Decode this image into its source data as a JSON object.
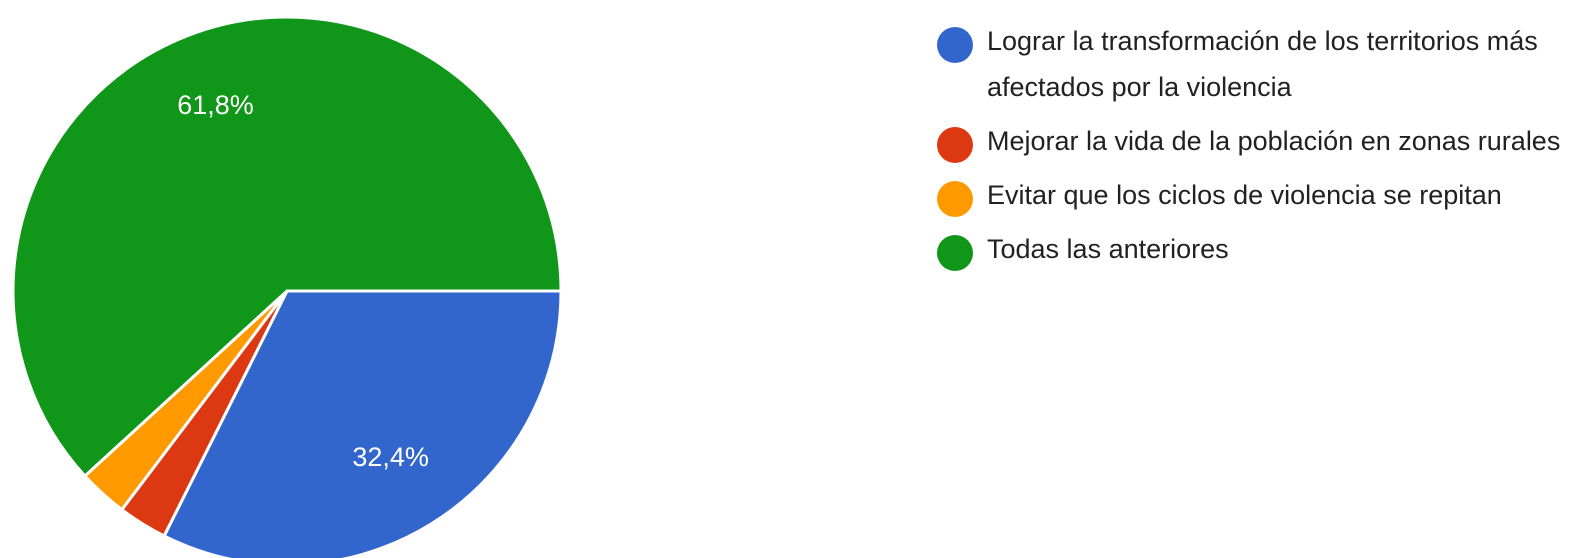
{
  "chart_data": {
    "type": "pie",
    "categories": [
      "Lograr la transformación de los territorios más afectados por la violencia",
      "Mejorar la vida de la población en zonas rurales",
      "Evitar que los ciclos de violencia se repitan",
      "Todas las anteriores"
    ],
    "values": [
      32.4,
      2.9,
      2.9,
      61.8
    ],
    "value_labels": [
      "32,4%",
      null,
      null,
      "61,8%"
    ],
    "colors": [
      "#3366cc",
      "#dc3912",
      "#ff9900",
      "#109618"
    ],
    "legend": "right"
  }
}
